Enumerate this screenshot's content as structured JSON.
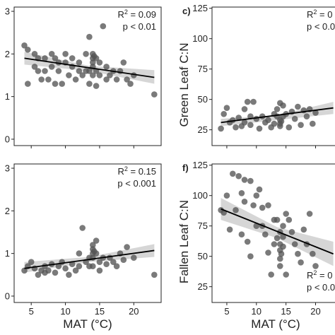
{
  "chart_data": [
    {
      "id": "top-left",
      "type": "scatter",
      "panel_label": "",
      "ylabel": "",
      "xlabel": "",
      "xlim": [
        2.5,
        24
      ],
      "ylim": [
        -0.15,
        3.1
      ],
      "xticks": [
        5,
        10,
        15,
        20
      ],
      "yticks": [
        0,
        1,
        2,
        3
      ],
      "show_xtick_labels": false,
      "stats": {
        "r2_prefix": "R",
        "r2_sup": "2",
        "r2_value": " = 0.09",
        "p_text": "p < 0.01"
      },
      "fit": {
        "x0": 4,
        "y0": 1.9,
        "x1": 23,
        "y1": 1.45
      },
      "band": {
        "lo0": 1.75,
        "hi0": 2.05,
        "lomid": 1.6,
        "himid": 1.72,
        "lo1": 1.3,
        "hi1": 1.62
      },
      "points": [
        [
          4,
          2.2
        ],
        [
          4.5,
          2.1
        ],
        [
          4.5,
          1.3
        ],
        [
          5.5,
          2.0
        ],
        [
          5.5,
          1.7
        ],
        [
          6,
          1.6
        ],
        [
          6,
          1.9
        ],
        [
          6.5,
          1.4
        ],
        [
          7,
          1.9
        ],
        [
          7,
          1.6
        ],
        [
          7.5,
          1.4
        ],
        [
          8,
          2.0
        ],
        [
          8,
          1.7
        ],
        [
          8.5,
          1.3
        ],
        [
          8.5,
          1.9
        ],
        [
          9,
          1.6
        ],
        [
          9,
          1.8
        ],
        [
          9.5,
          1.3
        ],
        [
          10,
          1.8
        ],
        [
          10,
          2.0
        ],
        [
          10.5,
          1.5
        ],
        [
          11,
          1.9
        ],
        [
          11,
          1.7
        ],
        [
          11.5,
          1.4
        ],
        [
          12,
          1.6
        ],
        [
          12,
          1.8
        ],
        [
          12.5,
          1.5
        ],
        [
          13,
          1.6
        ],
        [
          13,
          2.0
        ],
        [
          13.5,
          1.3
        ],
        [
          13.5,
          1.6
        ],
        [
          13.5,
          2.4
        ],
        [
          14,
          1.9
        ],
        [
          14,
          1.8
        ],
        [
          14,
          2.0
        ],
        [
          14,
          1.7
        ],
        [
          14,
          1.5
        ],
        [
          14.2,
          1.95
        ],
        [
          14.5,
          1.9
        ],
        [
          14.5,
          1.6
        ],
        [
          14.5,
          1.25
        ],
        [
          15,
          1.5
        ],
        [
          15,
          1.8
        ],
        [
          15.5,
          2.65
        ],
        [
          16,
          1.4
        ],
        [
          16,
          1.7
        ],
        [
          16.5,
          1.5
        ],
        [
          17,
          1.6
        ],
        [
          17.5,
          1.4
        ],
        [
          18,
          1.6
        ],
        [
          18.5,
          1.8
        ],
        [
          19,
          1.4
        ],
        [
          19.5,
          1.3
        ],
        [
          20,
          1.5
        ],
        [
          23,
          1.05
        ]
      ]
    },
    {
      "id": "top-right",
      "type": "scatter",
      "panel_label": "c)",
      "ylabel": "Green Leaf C:N",
      "xlabel": "",
      "xlim": [
        2.5,
        24
      ],
      "ylim": [
        12,
        126
      ],
      "xticks": [
        5,
        10,
        15,
        20
      ],
      "yticks": [
        25,
        50,
        75,
        100,
        125
      ],
      "show_xtick_labels": false,
      "stats": {
        "r2_prefix": "R",
        "r2_sup": "2",
        "r2_value": " = 0",
        "p_text": "p < 0.0"
      },
      "fit": {
        "x0": 4,
        "y0": 31,
        "x1": 23,
        "y1": 43
      },
      "band": {
        "lo0": 28,
        "hi0": 34,
        "lomid": 33,
        "himid": 37,
        "lo1": 38,
        "hi1": 48
      },
      "points": [
        [
          4,
          26
        ],
        [
          4.5,
          38
        ],
        [
          5,
          43
        ],
        [
          5.5,
          31
        ],
        [
          6,
          33
        ],
        [
          6.5,
          27
        ],
        [
          7,
          35
        ],
        [
          7.5,
          28
        ],
        [
          8,
          42
        ],
        [
          8,
          31
        ],
        [
          8.5,
          48
        ],
        [
          9,
          29
        ],
        [
          9,
          36
        ],
        [
          9.5,
          48
        ],
        [
          10,
          34
        ],
        [
          10.5,
          26
        ],
        [
          11,
          36
        ],
        [
          11.5,
          31
        ],
        [
          12,
          33
        ],
        [
          12.5,
          27
        ],
        [
          13,
          38
        ],
        [
          13,
          30
        ],
        [
          13.5,
          36
        ],
        [
          13.5,
          42
        ],
        [
          14,
          47
        ],
        [
          14,
          30
        ],
        [
          14,
          33
        ],
        [
          14,
          28
        ],
        [
          14.2,
          32
        ],
        [
          14.5,
          45
        ],
        [
          14.5,
          36
        ],
        [
          15,
          38
        ],
        [
          15.5,
          27
        ],
        [
          16,
          40
        ],
        [
          16.5,
          34
        ],
        [
          17,
          44
        ],
        [
          17.5,
          29
        ],
        [
          18,
          41
        ],
        [
          18.5,
          36
        ],
        [
          19,
          42
        ],
        [
          19.5,
          30
        ],
        [
          20,
          39
        ]
      ]
    },
    {
      "id": "bottom-left",
      "type": "scatter",
      "panel_label": "",
      "ylabel": "",
      "xlabel": "MAT (°C)",
      "xlim": [
        2.5,
        24
      ],
      "ylim": [
        -0.15,
        3.1
      ],
      "xticks": [
        5,
        10,
        15,
        20
      ],
      "yticks": [
        0,
        1,
        2,
        3
      ],
      "show_xtick_labels": true,
      "stats": {
        "r2_prefix": "R",
        "r2_sup": "2",
        "r2_value": " = 0.15",
        "p_text": "p < 0.001"
      },
      "fit": {
        "x0": 4,
        "y0": 0.65,
        "x1": 23,
        "y1": 1.07
      },
      "band": {
        "lo0": 0.55,
        "hi0": 0.8,
        "lomid": 0.8,
        "himid": 0.92,
        "lo1": 0.92,
        "hi1": 1.22
      },
      "points": [
        [
          4,
          0.6
        ],
        [
          4.5,
          0.7
        ],
        [
          5,
          0.8
        ],
        [
          5.5,
          0.65
        ],
        [
          6,
          0.5
        ],
        [
          6.5,
          0.6
        ],
        [
          7,
          0.55
        ],
        [
          7,
          0.7
        ],
        [
          7.5,
          0.6
        ],
        [
          8,
          0.75
        ],
        [
          8.5,
          0.55
        ],
        [
          9,
          0.7
        ],
        [
          9.5,
          0.8
        ],
        [
          10,
          0.65
        ],
        [
          10.5,
          0.5
        ],
        [
          11,
          0.75
        ],
        [
          11.5,
          0.6
        ],
        [
          12,
          1.0
        ],
        [
          12,
          0.7
        ],
        [
          12.5,
          1.6
        ],
        [
          13,
          0.8
        ],
        [
          13.5,
          0.7
        ],
        [
          13.5,
          0.9
        ],
        [
          14,
          1.0
        ],
        [
          14,
          1.1
        ],
        [
          14,
          1.2
        ],
        [
          14,
          0.9
        ],
        [
          14,
          0.7
        ],
        [
          14.2,
          1.05
        ],
        [
          14.5,
          1.3
        ],
        [
          14.5,
          1.0
        ],
        [
          15,
          0.8
        ],
        [
          15,
          0.6
        ],
        [
          15.5,
          0.9
        ],
        [
          16,
          0.75
        ],
        [
          16.5,
          0.9
        ],
        [
          17,
          0.8
        ],
        [
          17.5,
          0.7
        ],
        [
          18,
          1.0
        ],
        [
          18.5,
          0.85
        ],
        [
          19,
          1.15
        ],
        [
          20,
          0.9
        ],
        [
          23,
          0.5
        ]
      ]
    },
    {
      "id": "bottom-right",
      "type": "scatter",
      "panel_label": "f)",
      "ylabel": "Fallen Leaf C:N",
      "xlabel": "MAT (°C)",
      "xlim": [
        2.5,
        24
      ],
      "ylim": [
        12,
        126
      ],
      "xticks": [
        5,
        10,
        15,
        20
      ],
      "yticks": [
        25,
        50,
        75,
        100,
        125
      ],
      "show_xtick_labels": true,
      "stats": {
        "r2_prefix": "R",
        "r2_sup": "2",
        "r2_value": " = 0",
        "p_text": "p < 0.0"
      },
      "fit": {
        "x0": 4,
        "y0": 89,
        "x1": 23,
        "y1": 52
      },
      "band": {
        "lo0": 80,
        "hi0": 98,
        "lomid": 65,
        "himid": 74,
        "lo1": 42,
        "hi1": 62
      },
      "points": [
        [
          4,
          88
        ],
        [
          4.5,
          86
        ],
        [
          5,
          100
        ],
        [
          5.5,
          72
        ],
        [
          6,
          118
        ],
        [
          6.5,
          88
        ],
        [
          7,
          116
        ],
        [
          7.5,
          102
        ],
        [
          7.5,
          68
        ],
        [
          8,
          113
        ],
        [
          8,
          95
        ],
        [
          8.5,
          62
        ],
        [
          9,
          112
        ],
        [
          9,
          50
        ],
        [
          9.5,
          92
        ],
        [
          10,
          75
        ],
        [
          10,
          100
        ],
        [
          10.5,
          105
        ],
        [
          11,
          90
        ],
        [
          11,
          75
        ],
        [
          11.5,
          68
        ],
        [
          12,
          92
        ],
        [
          12,
          53
        ],
        [
          12.5,
          35
        ],
        [
          13,
          80
        ],
        [
          13,
          60
        ],
        [
          13.5,
          65
        ],
        [
          13.5,
          80
        ],
        [
          14,
          55
        ],
        [
          14,
          48
        ],
        [
          14,
          60
        ],
        [
          14,
          70
        ],
        [
          14,
          42
        ],
        [
          14.2,
          52
        ],
        [
          14.5,
          75
        ],
        [
          14.5,
          66
        ],
        [
          14.5,
          58
        ],
        [
          15,
          35
        ],
        [
          15,
          85
        ],
        [
          15.5,
          80
        ],
        [
          16,
          70
        ],
        [
          16.5,
          60
        ],
        [
          17,
          52
        ],
        [
          17.5,
          45
        ],
        [
          18,
          72
        ],
        [
          18.5,
          60
        ],
        [
          19,
          85
        ],
        [
          19.5,
          52
        ],
        [
          20,
          42
        ]
      ]
    }
  ],
  "colors": {
    "point": "#555555",
    "line": "#000000",
    "band": "#cfcfcf",
    "axis": "#222222"
  }
}
